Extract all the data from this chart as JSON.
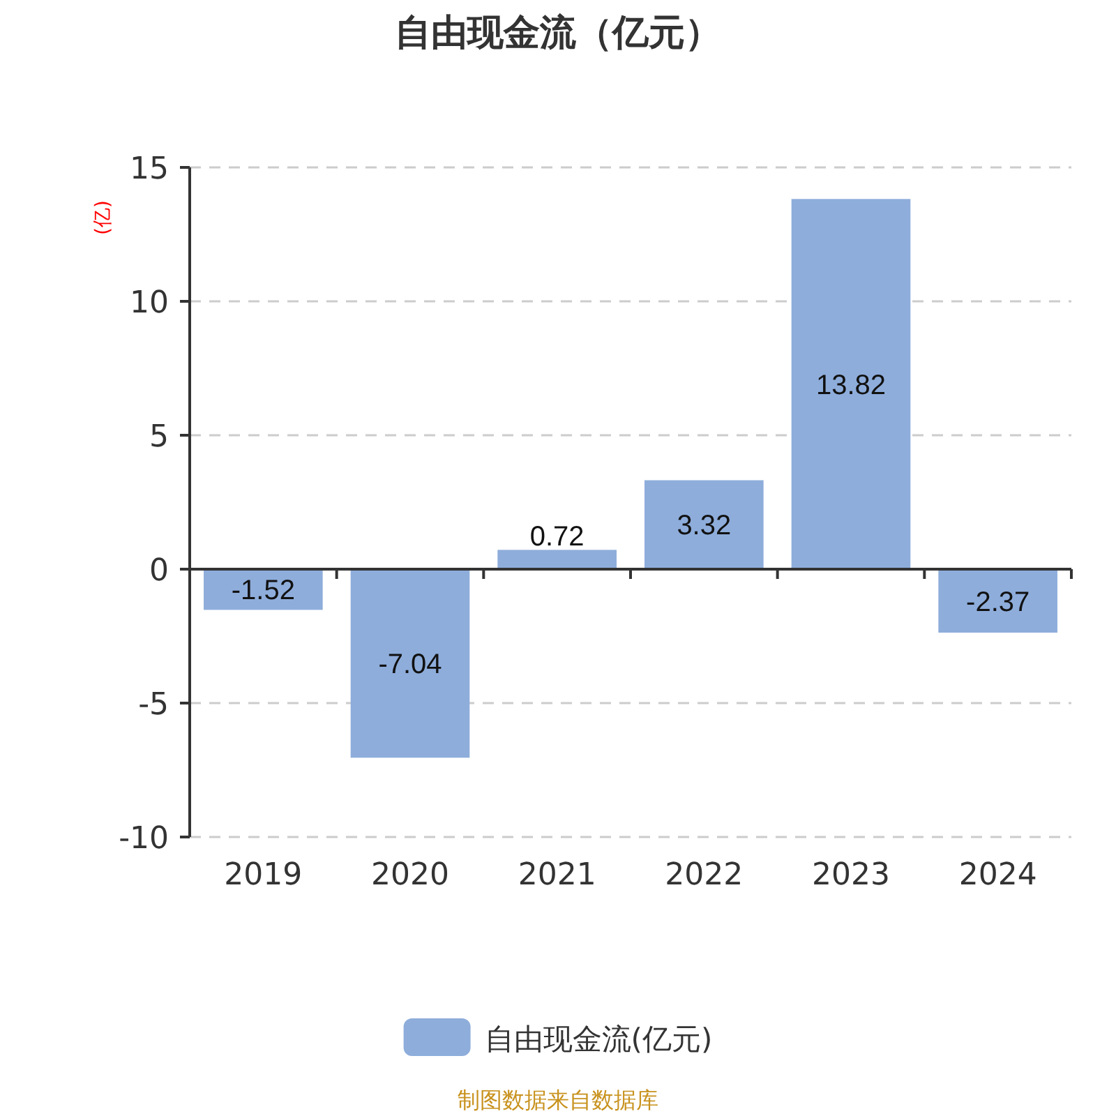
{
  "chart_data": {
    "type": "bar",
    "title": "自由现金流（亿元）",
    "ylabel": "(亿)",
    "categories": [
      "2019",
      "2020",
      "2021",
      "2022",
      "2023",
      "2024"
    ],
    "series": [
      {
        "name": "自由现金流(亿元)",
        "color": "#8eaddb",
        "values": [
          -1.52,
          -7.04,
          0.72,
          3.32,
          13.82,
          -2.37
        ]
      }
    ],
    "ylim": [
      -10,
      15
    ],
    "yticks": [
      -10,
      -5,
      0,
      5,
      10,
      15
    ],
    "grid": "y",
    "legend": "bottom",
    "data_labels": true,
    "annotations": [
      "制图数据来自数据库"
    ]
  }
}
